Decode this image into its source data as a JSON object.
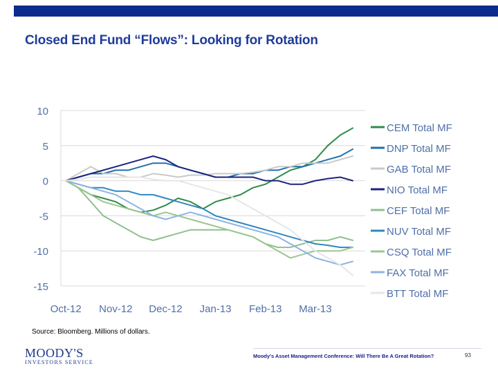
{
  "title": "Closed End Fund “Flows”:  Looking for Rotation",
  "source_note": "Source:  Bloomberg.  Millions of dollars.",
  "footer": {
    "logo_top": "MOODY'S",
    "logo_bottom": "INVESTORS SERVICE",
    "conference_text": "Moody's Asset Management Conference: Will There Be A Great Rotation?",
    "page_number": "93"
  },
  "chart_data": {
    "type": "line",
    "title": "",
    "xlabel": "",
    "ylabel": "",
    "ylim": [
      -15,
      10
    ],
    "yticks": [
      10,
      5,
      0,
      -5,
      -10,
      -15
    ],
    "xticks": [
      {
        "label": "Oct-12",
        "t": 0
      },
      {
        "label": "Nov-12",
        "t": 1
      },
      {
        "label": "Dec-12",
        "t": 2
      },
      {
        "label": "Jan-13",
        "t": 3
      },
      {
        "label": "Feb-13",
        "t": 4
      },
      {
        "label": "Mar-13",
        "t": 5
      }
    ],
    "x": [
      0,
      0.25,
      0.5,
      0.75,
      1,
      1.25,
      1.5,
      1.75,
      2,
      2.25,
      2.5,
      2.75,
      3,
      3.25,
      3.5,
      3.75,
      4,
      4.25,
      4.5,
      4.75,
      5,
      5.25,
      5.5,
      5.75
    ],
    "series": [
      {
        "name": "CEM Total MF",
        "color": "#2e8b4a",
        "values": [
          0,
          -1,
          -2,
          -2.5,
          -3,
          -4,
          -4.5,
          -4.2,
          -3.5,
          -2.5,
          -3,
          -4,
          -3,
          -2.5,
          -2,
          -1,
          -0.5,
          0.5,
          1.5,
          2,
          3,
          5,
          6.5,
          7.5
        ]
      },
      {
        "name": "DNP Total MF",
        "color": "#1f6fae",
        "values": [
          0,
          0.5,
          1,
          1,
          1.5,
          1.5,
          2,
          2.5,
          2.5,
          2,
          1.5,
          1,
          0.5,
          0.5,
          1,
          1,
          1.5,
          1.5,
          2,
          2,
          2.5,
          3,
          3.5,
          4.5
        ]
      },
      {
        "name": "GAB Total MF",
        "color": "#c9c9c9",
        "values": [
          0,
          1,
          2,
          1,
          1,
          0.5,
          0.5,
          1,
          0.8,
          0.5,
          0.8,
          0.8,
          1,
          1,
          1,
          1.2,
          1.5,
          2,
          2,
          2.5,
          2.5,
          2.5,
          3,
          3.5
        ]
      },
      {
        "name": "NIO Total MF",
        "color": "#1a237e",
        "values": [
          0,
          0.5,
          1,
          1.5,
          2,
          2.5,
          3,
          3.5,
          3,
          2,
          1.5,
          1,
          0.5,
          0.5,
          0.5,
          0.5,
          0,
          0,
          -0.5,
          -0.5,
          0,
          0.3,
          0.5,
          0
        ]
      },
      {
        "name": "CEF Total MF",
        "color": "#8fbf8f",
        "values": [
          0,
          -1,
          -3,
          -5,
          -6,
          -7,
          -8,
          -8.5,
          -8,
          -7.5,
          -7,
          -7,
          -7,
          -7,
          -7.5,
          -8,
          -9,
          -9.5,
          -9.5,
          -9,
          -8.5,
          -8.5,
          -8,
          -8.5
        ]
      },
      {
        "name": "NUV Total MF",
        "color": "#2f86c2",
        "values": [
          0,
          -0.5,
          -1,
          -1,
          -1.5,
          -1.5,
          -2,
          -2,
          -2.5,
          -3,
          -3.5,
          -4,
          -5,
          -5.5,
          -6,
          -6.5,
          -7,
          -7.5,
          -8,
          -8.5,
          -9,
          -9.2,
          -9.5,
          -9.5
        ]
      },
      {
        "name": "CSQ Total MF",
        "color": "#9cc58f",
        "values": [
          0,
          -1,
          -2,
          -3,
          -3.5,
          -4,
          -4.5,
          -5,
          -4.5,
          -5,
          -5.5,
          -6,
          -6.5,
          -7,
          -7.5,
          -8,
          -9,
          -10,
          -11,
          -10.5,
          -10,
          -10,
          -10,
          -9.5
        ]
      },
      {
        "name": "FAX Total MF",
        "color": "#8db3e2",
        "values": [
          0,
          -0.5,
          -1,
          -1.5,
          -2,
          -3,
          -4,
          -5,
          -5.5,
          -5,
          -4.5,
          -5,
          -5.5,
          -6,
          -6.5,
          -7,
          -7.5,
          -8,
          -9,
          -10,
          -11,
          -11.5,
          -12,
          -11.5
        ]
      },
      {
        "name": "BTT Total MF",
        "color": "#e6e6e6",
        "values": [
          0,
          0.2,
          0.5,
          0.5,
          0.5,
          0.5,
          0.5,
          0.2,
          0,
          0,
          -0.5,
          -1,
          -1.5,
          -2,
          -3,
          -4,
          -5,
          -6,
          -7,
          -8.5,
          -10,
          -11,
          -12,
          -13.5
        ]
      }
    ]
  }
}
